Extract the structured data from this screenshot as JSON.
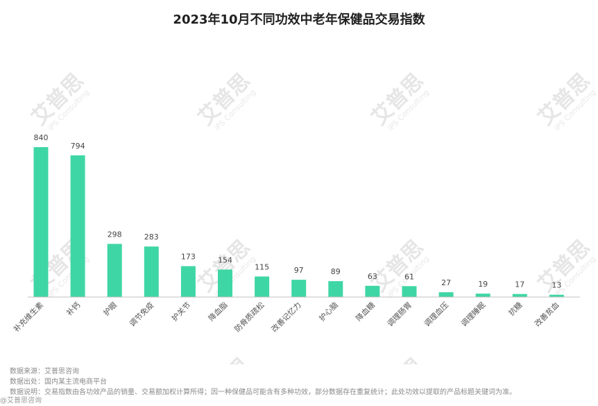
{
  "chart_data": {
    "type": "bar",
    "title": "2023年10月不同功效中老年保健品交易指数",
    "categories": [
      "补充维生素",
      "补钙",
      "护眼",
      "调节免疫",
      "护关节",
      "降血脂",
      "防骨质疏松",
      "改善记忆力",
      "护心脑",
      "降血糖",
      "调理肠胃",
      "调理血压",
      "调理睡眠",
      "抗糖",
      "改善贫血"
    ],
    "values": [
      840,
      794,
      298,
      283,
      173,
      154,
      115,
      97,
      89,
      63,
      61,
      27,
      19,
      17,
      13
    ],
    "xlabel": "",
    "ylabel": "",
    "ylim": [
      0,
      840
    ],
    "grid": false,
    "legend": "none",
    "bar_color": "#3fd6a5"
  },
  "watermark": {
    "brand": "艾普思",
    "sub": "iPS Consulting"
  },
  "notes": [
    "数据来源：艾普思咨询",
    "数据出处：国内某主流电商平台",
    "数据说明：交易指数由各功效产品的销量、交易额加权计算所得；因一种保健品可能含有多种功效，部分数据存在重复统计；此处功效以提取的产品标题关键词为准。"
  ],
  "corner_mark": "@艾普思咨询"
}
